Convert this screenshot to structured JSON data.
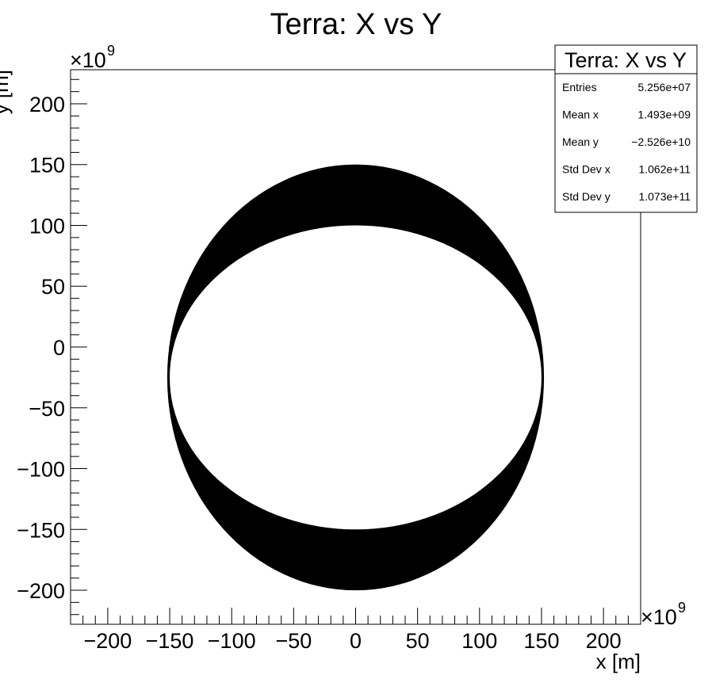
{
  "chart_data": {
    "type": "scatter",
    "title": "Terra: X vs Y",
    "xlabel": "x [m]",
    "ylabel": "y [m]",
    "x_exponent": "×10",
    "x_exponent_power": "9",
    "y_exponent": "×10",
    "y_exponent_power": "9",
    "xlim": [
      -230,
      230
    ],
    "ylim": [
      -228,
      228
    ],
    "units_scale": 1000000000.0,
    "x_ticks": [
      -200,
      -150,
      -100,
      -50,
      0,
      50,
      100,
      150,
      200
    ],
    "x_tick_labels": [
      "−200",
      "−150",
      "−100",
      "−50",
      "0",
      "50",
      "100",
      "150",
      "200"
    ],
    "y_ticks": [
      -200,
      -150,
      -100,
      -50,
      0,
      50,
      100,
      150,
      200
    ],
    "y_tick_labels": [
      "−200",
      "−150",
      "−100",
      "−50",
      "0",
      "50",
      "100",
      "150",
      "200"
    ],
    "grid": false,
    "shape": {
      "description": "dense band of points",
      "outer_rx": 152,
      "outer_top": 150,
      "outer_bottom": -200,
      "inner_rx": 150,
      "inner_top": 100,
      "inner_bottom": -150,
      "color": "#000000"
    },
    "stats_box": {
      "placement": "top-right",
      "title": "Terra: X vs Y",
      "rows": [
        {
          "label": "Entries",
          "value": "5.256e+07"
        },
        {
          "label": "Mean x",
          "value": "1.493e+09"
        },
        {
          "label": "Mean y",
          "value": "−2.526e+10"
        },
        {
          "label": "Std Dev x",
          "value": "1.062e+11"
        },
        {
          "label": "Std Dev y",
          "value": "1.073e+11"
        }
      ]
    }
  }
}
